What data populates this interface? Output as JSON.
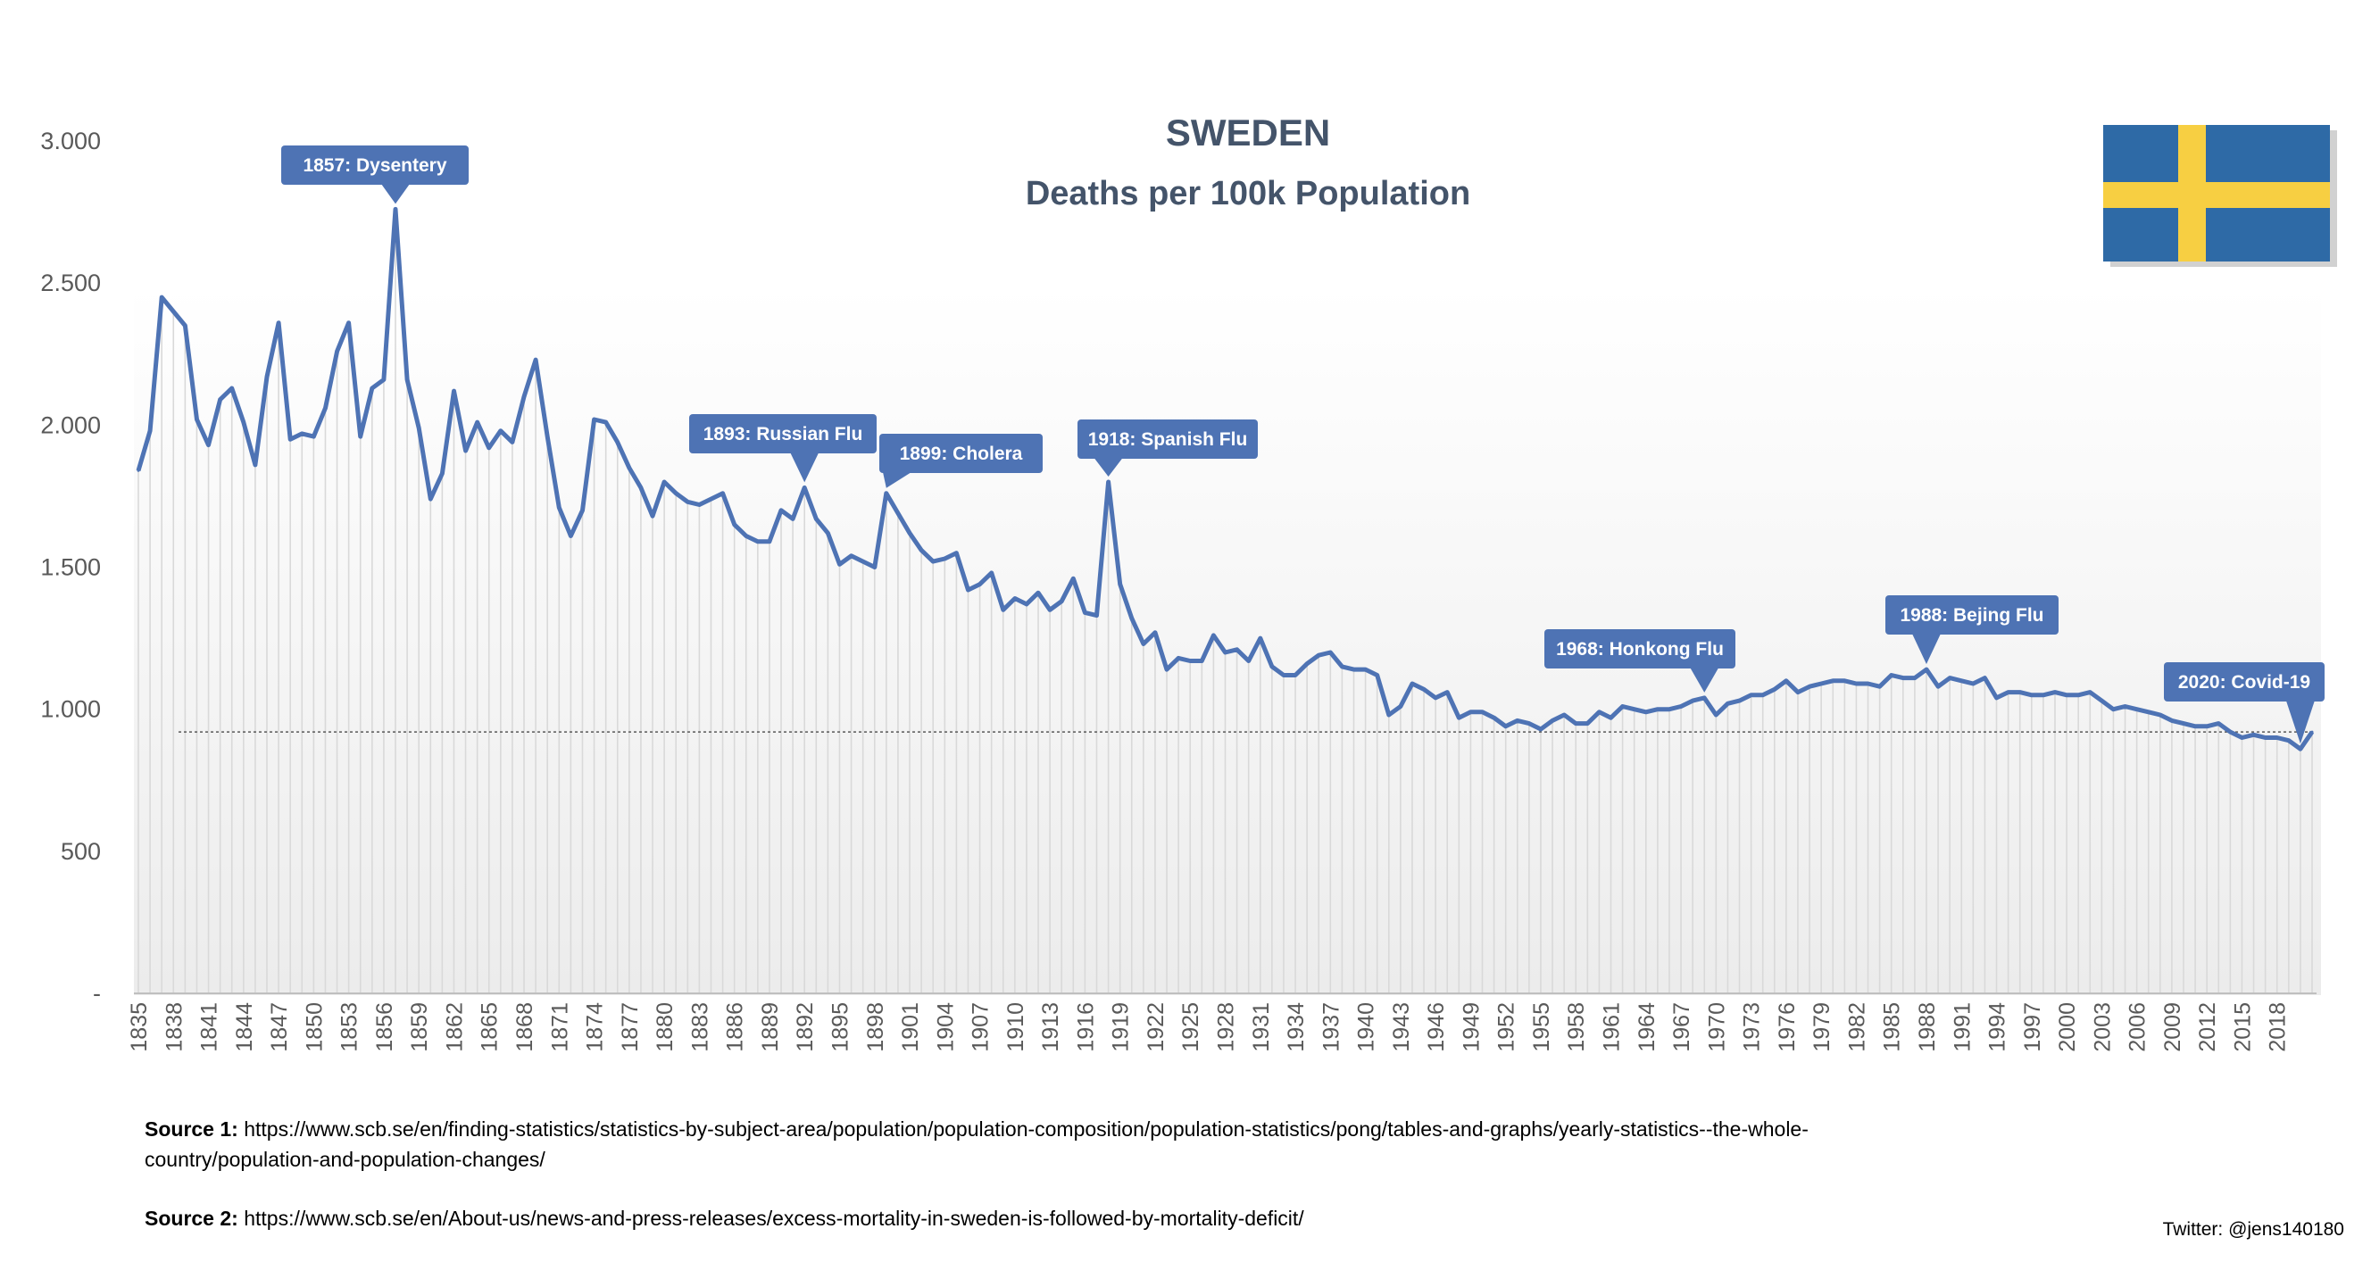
{
  "chart_data": {
    "type": "line",
    "title": "SWEDEN",
    "subtitle": "Deaths per 100k Population",
    "xlabel": "",
    "ylabel": "",
    "ylim": [
      0,
      3000
    ],
    "yticks": [
      {
        "value": 0,
        "label": "-"
      },
      {
        "value": 500,
        "label": "500"
      },
      {
        "value": 1000,
        "label": "1.000"
      },
      {
        "value": 1500,
        "label": "1.500"
      },
      {
        "value": 2000,
        "label": "2.000"
      },
      {
        "value": 2500,
        "label": "2.500"
      },
      {
        "value": 3000,
        "label": "3.000"
      }
    ],
    "xticks": [
      "1835",
      "1838",
      "1841",
      "1844",
      "1847",
      "1850",
      "1853",
      "1856",
      "1859",
      "1862",
      "1865",
      "1868",
      "1871",
      "1874",
      "1877",
      "1880",
      "1883",
      "1886",
      "1889",
      "1892",
      "1895",
      "1898",
      "1901",
      "1904",
      "1907",
      "1910",
      "1913",
      "1916",
      "1919",
      "1922",
      "1925",
      "1928",
      "1931",
      "1934",
      "1937",
      "1940",
      "1943",
      "1946",
      "1949",
      "1952",
      "1955",
      "1958",
      "1961",
      "1964",
      "1967",
      "1970",
      "1973",
      "1976",
      "1979",
      "1982",
      "1985",
      "1988",
      "1991",
      "1994",
      "1997",
      "2000",
      "2003",
      "2006",
      "2009",
      "2012",
      "2015",
      "2018"
    ],
    "x_start": 1835,
    "x_end": 2020,
    "reference_line": 920,
    "series": [
      {
        "name": "Deaths per 100k Population",
        "color": "#4e73b4",
        "values": [
          1840,
          1980,
          2450,
          2400,
          2350,
          2020,
          1930,
          2090,
          2130,
          2010,
          1860,
          2170,
          2360,
          1950,
          1970,
          1960,
          2060,
          2260,
          2360,
          1960,
          2130,
          2160,
          2760,
          2160,
          1990,
          1740,
          1830,
          2120,
          1910,
          2010,
          1920,
          1980,
          1940,
          2100,
          2230,
          1960,
          1710,
          1610,
          1700,
          2020,
          2010,
          1940,
          1850,
          1780,
          1680,
          1800,
          1760,
          1730,
          1720,
          1740,
          1760,
          1650,
          1610,
          1590,
          1590,
          1700,
          1670,
          1780,
          1670,
          1620,
          1510,
          1540,
          1520,
          1500,
          1760,
          1690,
          1620,
          1560,
          1520,
          1530,
          1550,
          1420,
          1440,
          1480,
          1350,
          1390,
          1370,
          1410,
          1350,
          1380,
          1460,
          1340,
          1330,
          1800,
          1440,
          1320,
          1230,
          1270,
          1140,
          1180,
          1170,
          1170,
          1260,
          1200,
          1210,
          1170,
          1250,
          1150,
          1120,
          1120,
          1160,
          1190,
          1200,
          1150,
          1140,
          1140,
          1120,
          980,
          1010,
          1090,
          1070,
          1040,
          1060,
          970,
          990,
          990,
          970,
          940,
          960,
          950,
          930,
          960,
          980,
          950,
          950,
          990,
          970,
          1010,
          1000,
          990,
          1000,
          1000,
          1010,
          1030,
          1040,
          980,
          1020,
          1030,
          1050,
          1050,
          1070,
          1100,
          1060,
          1080,
          1090,
          1100,
          1100,
          1090,
          1090,
          1080,
          1120,
          1110,
          1110,
          1140,
          1080,
          1110,
          1100,
          1090,
          1110,
          1040,
          1060,
          1060,
          1050,
          1050,
          1060,
          1050,
          1050,
          1060,
          1030,
          1000,
          1010,
          1000,
          990,
          980,
          960,
          950,
          940,
          940,
          950,
          920,
          900,
          910,
          900,
          900,
          890,
          860,
          920
        ]
      }
    ],
    "annotations": [
      {
        "label": "1857: Dysentery",
        "year": 1857
      },
      {
        "label": "1893: Russian Flu",
        "year": 1892
      },
      {
        "label": "1899: Cholera",
        "year": 1899
      },
      {
        "label": "1918: Spanish Flu",
        "year": 1918
      },
      {
        "label": "1968: Honkong Flu",
        "year": 1969
      },
      {
        "label": "1988: Bejing Flu",
        "year": 1988
      },
      {
        "label": "2020: Covid-19",
        "year": 2020
      }
    ]
  },
  "flag": {
    "name": "sweden-flag",
    "blue": "#2e6aa6",
    "yellow": "#f7cf42"
  },
  "colors": {
    "line": "#4e73b4",
    "callout": "#4e73b4",
    "drop": "#d9d9d9",
    "title": "#44546a"
  },
  "sources": {
    "source1_label": "Source 1:",
    "source1_url": "https://www.scb.se/en/finding-statistics/statistics-by-subject-area/population/population-composition/population-statistics/pong/tables-and-graphs/yearly-statistics--the-whole-country/population-and-population-changes/",
    "source2_label": "Source 2:",
    "source2_url": "https://www.scb.se/en/About-us/news-and-press-releases/excess-mortality-in-sweden-is-followed-by-mortality-deficit/"
  },
  "twitter": "Twitter: @jens140180"
}
